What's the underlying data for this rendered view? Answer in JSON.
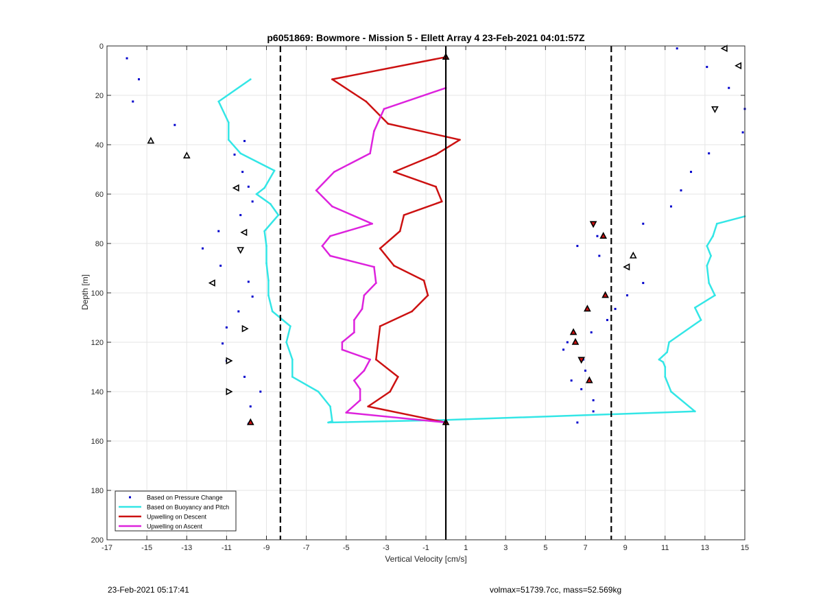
{
  "footer": {
    "timestamp": "23-Feb-2021 05:17:41",
    "vol_mass": "volmax=51739.7cc, mass=52.569kg"
  },
  "chart_data": {
    "type": "line",
    "title": "p6051869: Bowmore - Mission 5 - Ellett Array 4 23-Feb-2021 04:01:57Z",
    "xlabel": "Vertical Velocity [cm/s]",
    "ylabel": "Depth [m]",
    "xlim": [
      -17,
      15
    ],
    "ylim": [
      0,
      200
    ],
    "y_reversed": true,
    "grid": true,
    "xticks": [
      -17,
      -15,
      -13,
      -11,
      -9,
      -7,
      -5,
      -3,
      -1,
      1,
      3,
      5,
      7,
      9,
      11,
      13,
      15
    ],
    "yticks": [
      0,
      20,
      40,
      60,
      80,
      100,
      120,
      140,
      160,
      180,
      200
    ],
    "legend_position": "bottom-left",
    "colors": {
      "pressure": "#0000cc",
      "buoyancy": "#33e6e6",
      "descent": "#cc1111",
      "ascent": "#dd22dd",
      "reference": "#000000"
    },
    "series": [
      {
        "name": "Based on Pressure Change",
        "style": "points",
        "color": "#0000cc",
        "points": [
          [
            -16,
            5
          ],
          [
            -15.4,
            13.5
          ],
          [
            -15.7,
            22.5
          ],
          [
            -13.6,
            32
          ],
          [
            -10.1,
            38.5
          ],
          [
            -10.6,
            44
          ],
          [
            -10.2,
            51
          ],
          [
            -9.9,
            57
          ],
          [
            -9.7,
            63
          ],
          [
            -10.3,
            68.5
          ],
          [
            -11.4,
            75
          ],
          [
            -12.2,
            82
          ],
          [
            -11.3,
            89
          ],
          [
            -9.9,
            95.5
          ],
          [
            -9.7,
            101.5
          ],
          [
            -10.4,
            107.5
          ],
          [
            -11,
            114
          ],
          [
            -11.2,
            120.5
          ],
          [
            -11,
            127.5
          ],
          [
            -10.1,
            134
          ],
          [
            -9.3,
            140
          ],
          [
            -9.8,
            146
          ],
          [
            -9.9,
            153
          ],
          [
            11.6,
            1
          ],
          [
            13.1,
            8.5
          ],
          [
            14.2,
            17
          ],
          [
            15,
            25.5
          ],
          [
            14.9,
            35
          ],
          [
            13.2,
            43.5
          ],
          [
            12.3,
            51
          ],
          [
            11.8,
            58.5
          ],
          [
            11.3,
            65
          ],
          [
            9.9,
            72
          ],
          [
            7.6,
            77
          ],
          [
            6.6,
            81
          ],
          [
            7.7,
            85
          ],
          [
            9.9,
            96
          ],
          [
            9.1,
            101
          ],
          [
            8.5,
            106.5
          ],
          [
            8.1,
            111
          ],
          [
            7.3,
            116
          ],
          [
            6.1,
            120
          ],
          [
            5.9,
            123
          ],
          [
            6.9,
            127
          ],
          [
            7,
            131.5
          ],
          [
            6.3,
            135.5
          ],
          [
            6.8,
            139
          ],
          [
            7.4,
            143.5
          ],
          [
            7.4,
            148
          ],
          [
            6.6,
            152.5
          ]
        ]
      },
      {
        "name": "Based on Buoyancy and Pitch",
        "style": "line",
        "color": "#33e6e6",
        "points": [
          [
            -9.8,
            13.5
          ],
          [
            -11.4,
            22.5
          ],
          [
            -10.9,
            31
          ],
          [
            -10.9,
            38
          ],
          [
            -10.3,
            43.5
          ],
          [
            -8.6,
            50.5
          ],
          [
            -9.1,
            57.5
          ],
          [
            -9.5,
            60
          ],
          [
            -8.8,
            64
          ],
          [
            -8.4,
            68.5
          ],
          [
            -9.1,
            75
          ],
          [
            -9,
            81
          ],
          [
            -9,
            88
          ],
          [
            -8.9,
            95
          ],
          [
            -8.9,
            101
          ],
          [
            -8.7,
            107.5
          ],
          [
            -7.8,
            113.5
          ],
          [
            -8,
            120
          ],
          [
            -7.7,
            127
          ],
          [
            -7.7,
            134
          ],
          [
            -6.4,
            140
          ],
          [
            -5.8,
            146
          ],
          [
            -5.7,
            152
          ],
          [
            -5.9,
            152.5
          ],
          [
            -0.1,
            151.5
          ],
          [
            12.5,
            148
          ],
          [
            11.3,
            140
          ],
          [
            11,
            134
          ],
          [
            11,
            130
          ],
          [
            10.9,
            128
          ],
          [
            10.7,
            127
          ],
          [
            11.1,
            124
          ],
          [
            11.2,
            120
          ],
          [
            12.8,
            111
          ],
          [
            12.5,
            106
          ],
          [
            13.5,
            101
          ],
          [
            13.2,
            96
          ],
          [
            13.1,
            89
          ],
          [
            13.3,
            85
          ],
          [
            13.1,
            81
          ],
          [
            13.4,
            77
          ],
          [
            13.6,
            72
          ],
          [
            15,
            69
          ]
        ]
      },
      {
        "name": "Upwelling on Descent",
        "style": "line",
        "color": "#cc1111",
        "points": [
          [
            0,
            4.5
          ],
          [
            -5.7,
            13.5
          ],
          [
            -4,
            22.5
          ],
          [
            -2.9,
            31.5
          ],
          [
            0.7,
            38
          ],
          [
            -0.5,
            44
          ],
          [
            -2.6,
            51
          ],
          [
            -0.5,
            57
          ],
          [
            -0.2,
            63
          ],
          [
            -2.1,
            68.5
          ],
          [
            -2.3,
            75
          ],
          [
            -3.3,
            82
          ],
          [
            -2.6,
            89
          ],
          [
            -1.1,
            95
          ],
          [
            -0.9,
            101
          ],
          [
            -1.7,
            107.5
          ],
          [
            -3.3,
            113.5
          ],
          [
            -3.4,
            120
          ],
          [
            -3.5,
            127
          ],
          [
            -2.4,
            134
          ],
          [
            -2.8,
            140
          ],
          [
            -3.9,
            146
          ],
          [
            0,
            152.5
          ]
        ]
      },
      {
        "name": "Upwelling on Ascent",
        "style": "line",
        "color": "#dd22dd",
        "points": [
          [
            0,
            17
          ],
          [
            -3.1,
            25.5
          ],
          [
            -3.6,
            34.5
          ],
          [
            -3.8,
            43.5
          ],
          [
            -5.6,
            51
          ],
          [
            -6.5,
            58.5
          ],
          [
            -5.7,
            65
          ],
          [
            -3.7,
            72
          ],
          [
            -5.8,
            77
          ],
          [
            -6.2,
            81
          ],
          [
            -5.8,
            85
          ],
          [
            -3.6,
            89.5
          ],
          [
            -3.5,
            96
          ],
          [
            -4.1,
            101
          ],
          [
            -4.2,
            106.5
          ],
          [
            -4.6,
            111
          ],
          [
            -4.6,
            116
          ],
          [
            -5.2,
            120
          ],
          [
            -5.2,
            123
          ],
          [
            -3.8,
            127
          ],
          [
            -4.1,
            131.5
          ],
          [
            -4.6,
            135.5
          ],
          [
            -4.3,
            139
          ],
          [
            -4.3,
            143.5
          ],
          [
            -5,
            148.5
          ],
          [
            0,
            152.5
          ]
        ]
      }
    ],
    "markers": {
      "triangles_open": [
        [
          -14.8,
          38.5,
          "up"
        ],
        [
          -13,
          44.5,
          "up"
        ],
        [
          -10.5,
          57.5,
          "left"
        ],
        [
          -10.1,
          75.5,
          "left"
        ],
        [
          -10.3,
          82.5,
          "down"
        ],
        [
          -11.7,
          96,
          "left"
        ],
        [
          -10.1,
          114.5,
          "right"
        ],
        [
          -10.9,
          127.5,
          "right"
        ],
        [
          -10.9,
          140,
          "right"
        ],
        [
          14,
          1,
          "left"
        ],
        [
          14.7,
          8,
          "left"
        ],
        [
          13.5,
          25.5,
          "down"
        ],
        [
          9.4,
          85,
          "up"
        ],
        [
          9.1,
          89.5,
          "left"
        ]
      ],
      "triangles_filled": [
        [
          -9.8,
          152.5,
          "up"
        ],
        [
          7.4,
          72,
          "down"
        ],
        [
          7.9,
          77,
          "up"
        ],
        [
          8,
          101,
          "up"
        ],
        [
          7.1,
          106.5,
          "up"
        ],
        [
          6.4,
          116,
          "up"
        ],
        [
          6.5,
          120,
          "up"
        ],
        [
          6.8,
          127,
          "down"
        ],
        [
          7.2,
          135.5,
          "up"
        ],
        [
          0,
          4.5,
          "up"
        ],
        [
          0,
          152.5,
          "up"
        ]
      ]
    },
    "reference_lines": [
      {
        "x": 0,
        "style": "solid"
      },
      {
        "x": -8.3,
        "style": "dashed"
      },
      {
        "x": 8.3,
        "style": "dashed"
      }
    ]
  }
}
